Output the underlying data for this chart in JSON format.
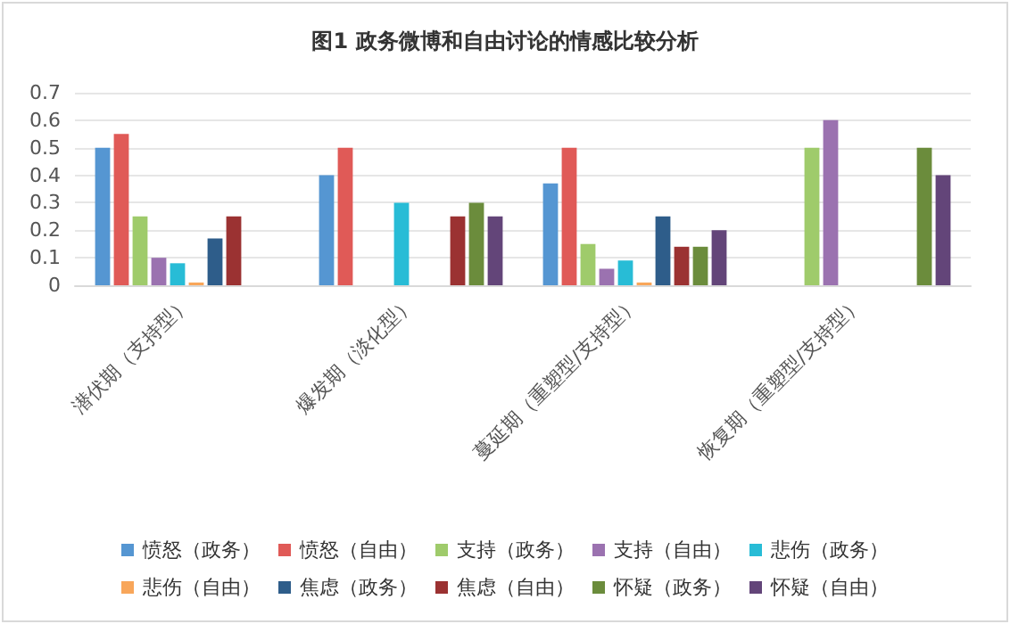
{
  "chart_data": {
    "type": "bar",
    "title": "图1 政务微博和自由讨论的情感比较分析",
    "categories": [
      "潜伏期（支持型）",
      "爆发期（淡化型）",
      "蔓延期（重塑型/支持型）",
      "恢复期（重塑型/支持型）"
    ],
    "series": [
      {
        "name": "愤怒（政务）",
        "color": "#5596d2",
        "values": [
          0.5,
          0.4,
          0.37,
          null
        ]
      },
      {
        "name": "愤怒（自由）",
        "color": "#e05a57",
        "values": [
          0.55,
          0.5,
          0.5,
          null
        ]
      },
      {
        "name": "支持（政务）",
        "color": "#9fcb6b",
        "values": [
          0.25,
          null,
          0.15,
          0.5
        ]
      },
      {
        "name": "支持（自由）",
        "color": "#9b72b0",
        "values": [
          0.1,
          null,
          0.06,
          0.6
        ]
      },
      {
        "name": "悲伤（政务）",
        "color": "#28bcd6",
        "values": [
          0.08,
          0.3,
          0.09,
          null
        ]
      },
      {
        "name": "悲伤（自由）",
        "color": "#f8a65a",
        "values": [
          0.01,
          null,
          0.01,
          null
        ]
      },
      {
        "name": "焦虑（政务）",
        "color": "#2e5d8a",
        "values": [
          0.17,
          null,
          0.25,
          null
        ]
      },
      {
        "name": "焦虑（自由）",
        "color": "#9b3232",
        "values": [
          0.25,
          0.25,
          0.14,
          null
        ]
      },
      {
        "name": "怀疑（政务）",
        "color": "#6b8c3c",
        "values": [
          null,
          0.3,
          0.14,
          0.5
        ]
      },
      {
        "name": "怀疑（自由）",
        "color": "#634579",
        "values": [
          null,
          0.25,
          0.2,
          0.4
        ]
      }
    ],
    "ylim": [
      0,
      0.7
    ],
    "yticks": [
      0,
      0.1,
      0.2,
      0.3,
      0.4,
      0.5,
      0.6,
      0.7
    ],
    "grid": "y",
    "legend": "bottom"
  }
}
